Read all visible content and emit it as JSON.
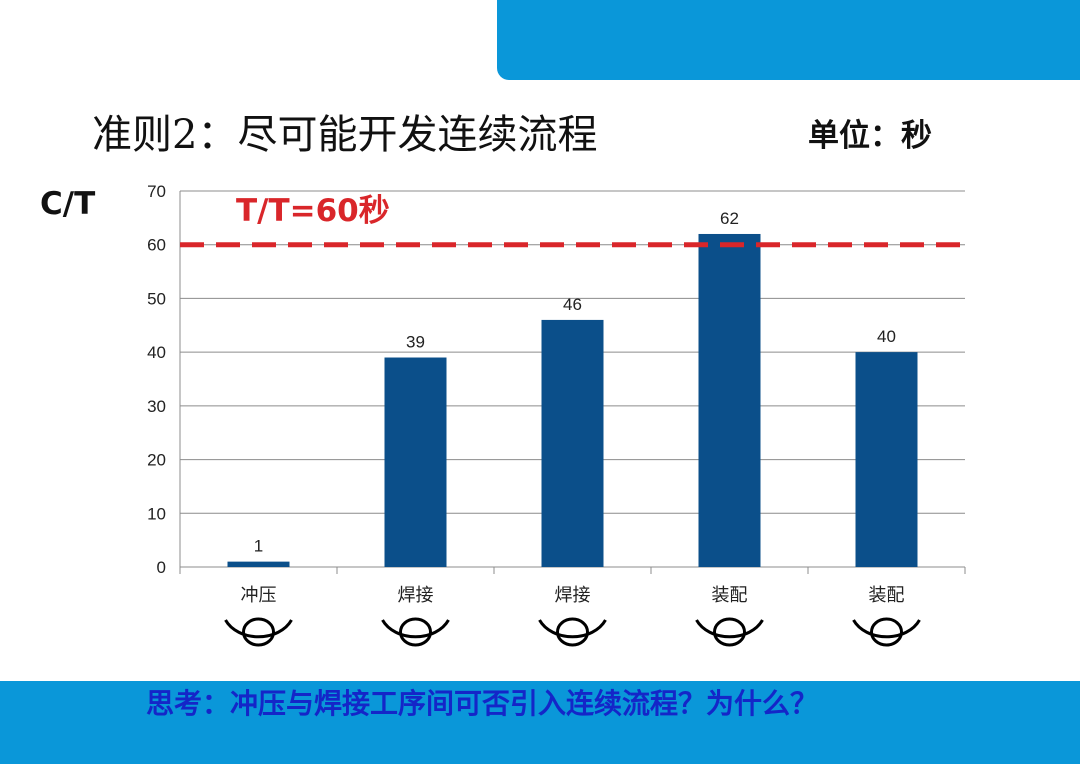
{
  "slide": {
    "title": "准则2：尽可能开发连续流程",
    "unit": "单位：秒",
    "question": "思考：冲压与焊接工序间可否引入连续流程？为什么？"
  },
  "colors": {
    "band": "#0a97d9",
    "bar": "#0b4f8a",
    "takt_line": "#d9262a",
    "question_text": "#1426c8"
  },
  "chart_data": {
    "type": "bar",
    "title": "",
    "xlabel": "",
    "ylabel": "C/T",
    "categories": [
      "冲压",
      "焊接",
      "焊接",
      "装配",
      "装配"
    ],
    "values": [
      1,
      39,
      46,
      62,
      40
    ],
    "data_labels": [
      "1",
      "39",
      "46",
      "62",
      "40"
    ],
    "ylim": [
      0,
      70
    ],
    "yticks": [
      "0",
      "10",
      "20",
      "30",
      "40",
      "50",
      "60",
      "70"
    ],
    "grid": true,
    "reference_line": {
      "value": 60,
      "label": "T/T=60秒",
      "style": "dashed"
    },
    "operator_icons": [
      "operator-icon",
      "operator-icon",
      "operator-icon",
      "operator-icon",
      "operator-icon"
    ]
  }
}
